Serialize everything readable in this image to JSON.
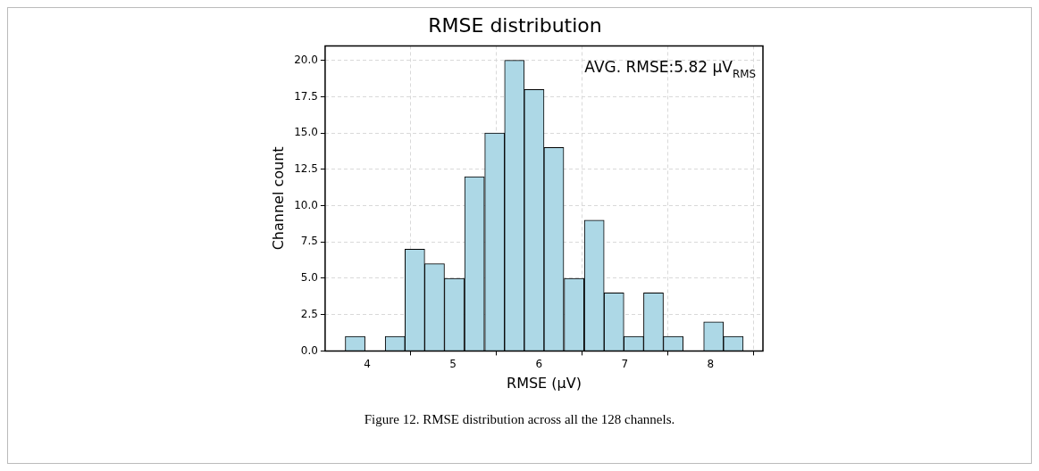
{
  "chart_data": {
    "type": "histogram",
    "title": "RMSE distribution",
    "xlabel": "RMSE (μV)",
    "ylabel": "Channel count",
    "bins": [
      3.74,
      3.98,
      4.21,
      4.44,
      4.67,
      4.9,
      5.13,
      5.37,
      5.6,
      5.83,
      6.06,
      6.29,
      6.53,
      6.76,
      6.99,
      7.22,
      7.45,
      7.68,
      7.92,
      8.15,
      8.38
    ],
    "values": [
      1,
      0,
      1,
      7,
      6,
      5,
      12,
      15,
      20,
      18,
      14,
      5,
      9,
      4,
      1,
      4,
      1,
      0,
      2,
      1
    ],
    "color": "#add8e6",
    "xlim": [
      3.51,
      8.61
    ],
    "xticks": [
      4,
      5,
      6,
      7,
      8
    ],
    "ylim": [
      0,
      21
    ],
    "yticks": [
      {
        "value": 0,
        "label": "0.0"
      },
      {
        "value": 2.5,
        "label": "2.5"
      },
      {
        "value": 5,
        "label": "5.0"
      },
      {
        "value": 7.5,
        "label": "7.5"
      },
      {
        "value": 10,
        "label": "10.0"
      },
      {
        "value": 12.5,
        "label": "12.5"
      },
      {
        "value": 15,
        "label": "15.0"
      },
      {
        "value": 17.5,
        "label": "17.5"
      },
      {
        "value": 20,
        "label": "20.0"
      }
    ],
    "grid": true,
    "annotations": [
      "AVG. RMSE:5.82 μV$_{RMS}$",
      "Figure 12. RMSE distribution across all the 128 channels."
    ]
  }
}
